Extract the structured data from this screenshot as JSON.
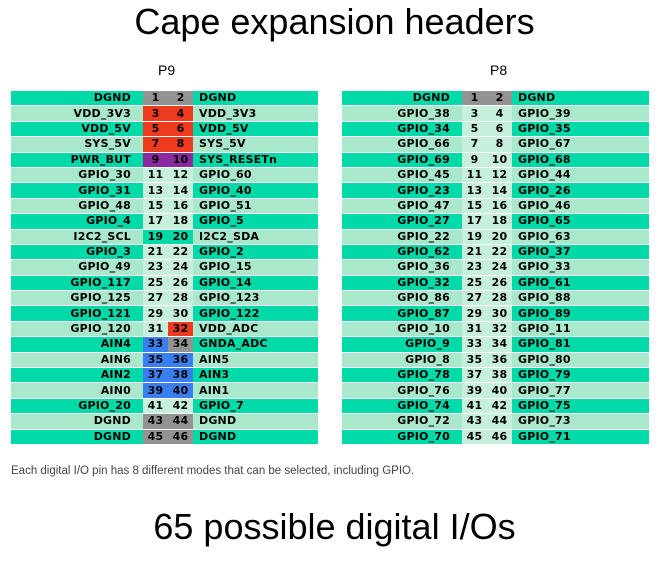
{
  "title": "Cape expansion headers",
  "footer_note": "Each digital I/O pin has 8 different modes that can be selected, including GPIO.",
  "big_caption": "65 possible digital I/Os",
  "colors": {
    "teal": "#00d9a8",
    "mint": "#a9e8cb",
    "pale": "#c7f0dc",
    "gray": "#939393",
    "red": "#ee3a1e",
    "purple": "#8a2a9e",
    "blue": "#3a7ff0",
    "white": "#ffffff"
  },
  "headers": [
    {
      "label": "P9",
      "rows": [
        {
          "left": "DGND",
          "l": "1",
          "r": "2",
          "right": "DGND",
          "lbg": "teal",
          "lnbg": "gray",
          "rnbg": "gray",
          "rbg": "teal"
        },
        {
          "left": "VDD_3V3",
          "l": "3",
          "r": "4",
          "right": "VDD_3V3",
          "lbg": "mint",
          "lnbg": "red",
          "rnbg": "red",
          "rbg": "mint"
        },
        {
          "left": "VDD_5V",
          "l": "5",
          "r": "6",
          "right": "VDD_5V",
          "lbg": "teal",
          "lnbg": "red",
          "rnbg": "red",
          "rbg": "teal"
        },
        {
          "left": "SYS_5V",
          "l": "7",
          "r": "8",
          "right": "SYS_5V",
          "lbg": "mint",
          "lnbg": "red",
          "rnbg": "red",
          "rbg": "mint"
        },
        {
          "left": "PWR_BUT",
          "l": "9",
          "r": "10",
          "right": "SYS_RESETn",
          "lbg": "teal",
          "lnbg": "purple",
          "rnbg": "purple",
          "rbg": "teal"
        },
        {
          "left": "GPIO_30",
          "l": "11",
          "r": "12",
          "right": "GPIO_60",
          "lbg": "mint",
          "lnbg": "pale",
          "rnbg": "pale",
          "rbg": "mint"
        },
        {
          "left": "GPIO_31",
          "l": "13",
          "r": "14",
          "right": "GPIO_40",
          "lbg": "teal",
          "lnbg": "pale",
          "rnbg": "pale",
          "rbg": "teal"
        },
        {
          "left": "GPIO_48",
          "l": "15",
          "r": "16",
          "right": "GPIO_51",
          "lbg": "mint",
          "lnbg": "pale",
          "rnbg": "pale",
          "rbg": "mint"
        },
        {
          "left": "GPIO_4",
          "l": "17",
          "r": "18",
          "right": "GPIO_5",
          "lbg": "teal",
          "lnbg": "pale",
          "rnbg": "pale",
          "rbg": "teal"
        },
        {
          "left": "I2C2_SCL",
          "l": "19",
          "r": "20",
          "right": "I2C2_SDA",
          "lbg": "mint",
          "lnbg": "teal",
          "rnbg": "teal",
          "rbg": "mint"
        },
        {
          "left": "GPIO_3",
          "l": "21",
          "r": "22",
          "right": "GPIO_2",
          "lbg": "teal",
          "lnbg": "pale",
          "rnbg": "pale",
          "rbg": "teal"
        },
        {
          "left": "GPIO_49",
          "l": "23",
          "r": "24",
          "right": "GPIO_15",
          "lbg": "mint",
          "lnbg": "pale",
          "rnbg": "pale",
          "rbg": "mint"
        },
        {
          "left": "GPIO_117",
          "l": "25",
          "r": "26",
          "right": "GPIO_14",
          "lbg": "teal",
          "lnbg": "pale",
          "rnbg": "pale",
          "rbg": "teal"
        },
        {
          "left": "GPIO_125",
          "l": "27",
          "r": "28",
          "right": "GPIO_123",
          "lbg": "mint",
          "lnbg": "pale",
          "rnbg": "pale",
          "rbg": "mint"
        },
        {
          "left": "GPIO_121",
          "l": "29",
          "r": "30",
          "right": "GPIO_122",
          "lbg": "teal",
          "lnbg": "pale",
          "rnbg": "pale",
          "rbg": "teal"
        },
        {
          "left": "GPIO_120",
          "l": "31",
          "r": "32",
          "right": "VDD_ADC",
          "lbg": "mint",
          "lnbg": "pale",
          "rnbg": "red",
          "rbg": "mint"
        },
        {
          "left": "AIN4",
          "l": "33",
          "r": "34",
          "right": "GNDA_ADC",
          "lbg": "teal",
          "lnbg": "blue",
          "rnbg": "gray",
          "rbg": "teal"
        },
        {
          "left": "AIN6",
          "l": "35",
          "r": "36",
          "right": "AIN5",
          "lbg": "mint",
          "lnbg": "blue",
          "rnbg": "blue",
          "rbg": "mint"
        },
        {
          "left": "AIN2",
          "l": "37",
          "r": "38",
          "right": "AIN3",
          "lbg": "teal",
          "lnbg": "blue",
          "rnbg": "blue",
          "rbg": "teal"
        },
        {
          "left": "AIN0",
          "l": "39",
          "r": "40",
          "right": "AIN1",
          "lbg": "mint",
          "lnbg": "blue",
          "rnbg": "blue",
          "rbg": "mint"
        },
        {
          "left": "GPIO_20",
          "l": "41",
          "r": "42",
          "right": "GPIO_7",
          "lbg": "teal",
          "lnbg": "pale",
          "rnbg": "pale",
          "rbg": "teal"
        },
        {
          "left": "DGND",
          "l": "43",
          "r": "44",
          "right": "DGND",
          "lbg": "mint",
          "lnbg": "gray",
          "rnbg": "gray",
          "rbg": "mint"
        },
        {
          "left": "DGND",
          "l": "45",
          "r": "46",
          "right": "DGND",
          "lbg": "teal",
          "lnbg": "gray",
          "rnbg": "gray",
          "rbg": "teal"
        }
      ]
    },
    {
      "label": "P8",
      "rows": [
        {
          "left": "DGND",
          "l": "1",
          "r": "2",
          "right": "DGND",
          "lbg": "teal",
          "lnbg": "gray",
          "rnbg": "gray",
          "rbg": "teal"
        },
        {
          "left": "GPIO_38",
          "l": "3",
          "r": "4",
          "right": "GPIO_39",
          "lbg": "mint",
          "lnbg": "pale",
          "rnbg": "pale",
          "rbg": "mint"
        },
        {
          "left": "GPIO_34",
          "l": "5",
          "r": "6",
          "right": "GPIO_35",
          "lbg": "teal",
          "lnbg": "pale",
          "rnbg": "pale",
          "rbg": "teal"
        },
        {
          "left": "GPIO_66",
          "l": "7",
          "r": "8",
          "right": "GPIO_67",
          "lbg": "mint",
          "lnbg": "pale",
          "rnbg": "pale",
          "rbg": "mint"
        },
        {
          "left": "GPIO_69",
          "l": "9",
          "r": "10",
          "right": "GPIO_68",
          "lbg": "teal",
          "lnbg": "pale",
          "rnbg": "pale",
          "rbg": "teal"
        },
        {
          "left": "GPIO_45",
          "l": "11",
          "r": "12",
          "right": "GPIO_44",
          "lbg": "mint",
          "lnbg": "pale",
          "rnbg": "pale",
          "rbg": "mint"
        },
        {
          "left": "GPIO_23",
          "l": "13",
          "r": "14",
          "right": "GPIO_26",
          "lbg": "teal",
          "lnbg": "pale",
          "rnbg": "pale",
          "rbg": "teal"
        },
        {
          "left": "GPIO_47",
          "l": "15",
          "r": "16",
          "right": "GPIO_46",
          "lbg": "mint",
          "lnbg": "pale",
          "rnbg": "pale",
          "rbg": "mint"
        },
        {
          "left": "GPIO_27",
          "l": "17",
          "r": "18",
          "right": "GPIO_65",
          "lbg": "teal",
          "lnbg": "pale",
          "rnbg": "pale",
          "rbg": "teal"
        },
        {
          "left": "GPIO_22",
          "l": "19",
          "r": "20",
          "right": "GPIO_63",
          "lbg": "mint",
          "lnbg": "pale",
          "rnbg": "pale",
          "rbg": "mint"
        },
        {
          "left": "GPIO_62",
          "l": "21",
          "r": "22",
          "right": "GPIO_37",
          "lbg": "teal",
          "lnbg": "pale",
          "rnbg": "pale",
          "rbg": "teal"
        },
        {
          "left": "GPIO_36",
          "l": "23",
          "r": "24",
          "right": "GPIO_33",
          "lbg": "mint",
          "lnbg": "pale",
          "rnbg": "pale",
          "rbg": "mint"
        },
        {
          "left": "GPIO_32",
          "l": "25",
          "r": "26",
          "right": "GPIO_61",
          "lbg": "teal",
          "lnbg": "pale",
          "rnbg": "pale",
          "rbg": "teal"
        },
        {
          "left": "GPIO_86",
          "l": "27",
          "r": "28",
          "right": "GPIO_88",
          "lbg": "mint",
          "lnbg": "pale",
          "rnbg": "pale",
          "rbg": "mint"
        },
        {
          "left": "GPIO_87",
          "l": "29",
          "r": "30",
          "right": "GPIO_89",
          "lbg": "teal",
          "lnbg": "pale",
          "rnbg": "pale",
          "rbg": "teal"
        },
        {
          "left": "GPIO_10",
          "l": "31",
          "r": "32",
          "right": "GPIO_11",
          "lbg": "mint",
          "lnbg": "pale",
          "rnbg": "pale",
          "rbg": "mint"
        },
        {
          "left": "GPIO_9",
          "l": "33",
          "r": "34",
          "right": "GPIO_81",
          "lbg": "teal",
          "lnbg": "pale",
          "rnbg": "pale",
          "rbg": "teal"
        },
        {
          "left": "GPIO_8",
          "l": "35",
          "r": "36",
          "right": "GPIO_80",
          "lbg": "mint",
          "lnbg": "pale",
          "rnbg": "pale",
          "rbg": "mint"
        },
        {
          "left": "GPIO_78",
          "l": "37",
          "r": "38",
          "right": "GPIO_79",
          "lbg": "teal",
          "lnbg": "pale",
          "rnbg": "pale",
          "rbg": "teal"
        },
        {
          "left": "GPIO_76",
          "l": "39",
          "r": "40",
          "right": "GPIO_77",
          "lbg": "mint",
          "lnbg": "pale",
          "rnbg": "pale",
          "rbg": "mint"
        },
        {
          "left": "GPIO_74",
          "l": "41",
          "r": "42",
          "right": "GPIO_75",
          "lbg": "teal",
          "lnbg": "pale",
          "rnbg": "pale",
          "rbg": "teal"
        },
        {
          "left": "GPIO_72",
          "l": "43",
          "r": "44",
          "right": "GPIO_73",
          "lbg": "mint",
          "lnbg": "pale",
          "rnbg": "pale",
          "rbg": "mint"
        },
        {
          "left": "GPIO_70",
          "l": "45",
          "r": "46",
          "right": "GPIO_71",
          "lbg": "teal",
          "lnbg": "pale",
          "rnbg": "pale",
          "rbg": "teal"
        }
      ]
    }
  ]
}
